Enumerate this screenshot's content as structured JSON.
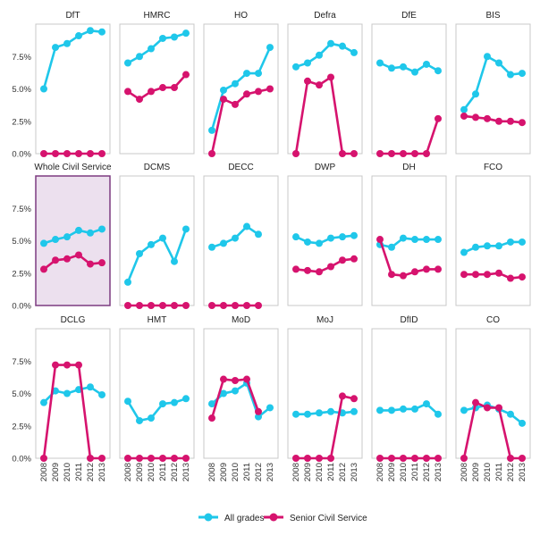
{
  "chart_data": {
    "type": "line",
    "x": [
      "2008",
      "2009",
      "2010",
      "2011",
      "2012",
      "2013"
    ],
    "ylim": [
      0,
      10
    ],
    "yticks": [
      "0.0%",
      "2.5%",
      "5.0%",
      "7.5%"
    ],
    "ytick_values": [
      0,
      2.5,
      5.0,
      7.5
    ],
    "grid": false,
    "legend": {
      "position": "bottom",
      "entries": [
        "All grades",
        "Senior Civil Service"
      ]
    },
    "colors": {
      "all_grades": "#1fc7ea",
      "senior_civil_service": "#d6136e",
      "highlight_panel": "#ece0ee",
      "highlight_border": "#7d3b80",
      "panel_border": "#c8c8c8"
    },
    "highlighted_panel": "Whole Civil Service",
    "panels": [
      {
        "title": "DfT",
        "all_grades": [
          5.0,
          8.2,
          8.5,
          9.1,
          9.5,
          9.4
        ],
        "scs": [
          0,
          0,
          0,
          0,
          0,
          0
        ]
      },
      {
        "title": "HMRC",
        "all_grades": [
          7.0,
          7.5,
          8.1,
          8.9,
          9.0,
          9.3
        ],
        "scs": [
          4.8,
          4.2,
          4.8,
          5.1,
          5.1,
          6.1
        ]
      },
      {
        "title": "HO",
        "all_grades": [
          1.8,
          4.9,
          5.4,
          6.2,
          6.2,
          8.2
        ],
        "scs": [
          0,
          4.2,
          3.8,
          4.6,
          4.8,
          5.0
        ]
      },
      {
        "title": "Defra",
        "all_grades": [
          6.7,
          7.0,
          7.6,
          8.5,
          8.3,
          7.8
        ],
        "scs": [
          0,
          5.6,
          5.3,
          5.9,
          0,
          0
        ]
      },
      {
        "title": "DfE",
        "all_grades": [
          7.0,
          6.6,
          6.7,
          6.3,
          6.9,
          6.4
        ],
        "scs": [
          0,
          0,
          0,
          0,
          0,
          2.7
        ]
      },
      {
        "title": "BIS",
        "all_grades": [
          3.4,
          4.6,
          7.5,
          7.0,
          6.1,
          6.2
        ],
        "scs": [
          2.9,
          2.8,
          2.7,
          2.5,
          2.5,
          2.4
        ]
      },
      {
        "title": "Whole Civil Service",
        "all_grades": [
          4.8,
          5.1,
          5.3,
          5.8,
          5.6,
          5.9
        ],
        "scs": [
          2.8,
          3.5,
          3.6,
          3.9,
          3.2,
          3.3
        ]
      },
      {
        "title": "DCMS",
        "all_grades": [
          1.8,
          4.0,
          4.7,
          5.2,
          3.4,
          5.9
        ],
        "scs": [
          0,
          0,
          0,
          0,
          0,
          0
        ]
      },
      {
        "title": "DECC",
        "all_grades": [
          4.5,
          4.8,
          5.2,
          6.1,
          5.5,
          null
        ],
        "scs": [
          0,
          0,
          0,
          0,
          0,
          null
        ]
      },
      {
        "title": "DWP",
        "all_grades": [
          5.3,
          4.9,
          4.8,
          5.2,
          5.3,
          5.4
        ],
        "scs": [
          2.8,
          2.7,
          2.6,
          3.0,
          3.5,
          3.6
        ]
      },
      {
        "title": "DH",
        "all_grades": [
          4.7,
          4.5,
          5.2,
          5.1,
          5.1,
          5.1
        ],
        "scs": [
          5.1,
          2.4,
          2.3,
          2.6,
          2.8,
          2.8
        ]
      },
      {
        "title": "FCO",
        "all_grades": [
          4.1,
          4.5,
          4.6,
          4.6,
          4.9,
          4.9
        ],
        "scs": [
          2.4,
          2.4,
          2.4,
          2.5,
          2.1,
          2.2
        ]
      },
      {
        "title": "DCLG",
        "all_grades": [
          4.3,
          5.2,
          5.0,
          5.3,
          5.5,
          4.9
        ],
        "scs": [
          0,
          7.2,
          7.2,
          7.2,
          0,
          0
        ]
      },
      {
        "title": "HMT",
        "all_grades": [
          4.4,
          2.9,
          3.1,
          4.2,
          4.3,
          4.6
        ],
        "scs": [
          0,
          0,
          0,
          0,
          0,
          0
        ]
      },
      {
        "title": "MoD",
        "all_grades": [
          4.2,
          5.0,
          5.2,
          5.8,
          3.2,
          3.9
        ],
        "scs": [
          3.1,
          6.1,
          6.0,
          6.1,
          3.6,
          null
        ]
      },
      {
        "title": "MoJ",
        "all_grades": [
          3.4,
          3.4,
          3.5,
          3.6,
          3.5,
          3.6
        ],
        "scs": [
          0,
          0,
          0,
          0,
          4.8,
          4.6
        ]
      },
      {
        "title": "DfID",
        "all_grades": [
          3.7,
          3.7,
          3.8,
          3.8,
          4.2,
          3.4
        ],
        "scs": [
          0,
          0,
          0,
          0,
          0,
          0
        ]
      },
      {
        "title": "CO",
        "all_grades": [
          3.7,
          3.9,
          4.1,
          3.8,
          3.4,
          2.7
        ],
        "scs": [
          0,
          4.3,
          3.9,
          3.9,
          0,
          0
        ]
      }
    ]
  }
}
